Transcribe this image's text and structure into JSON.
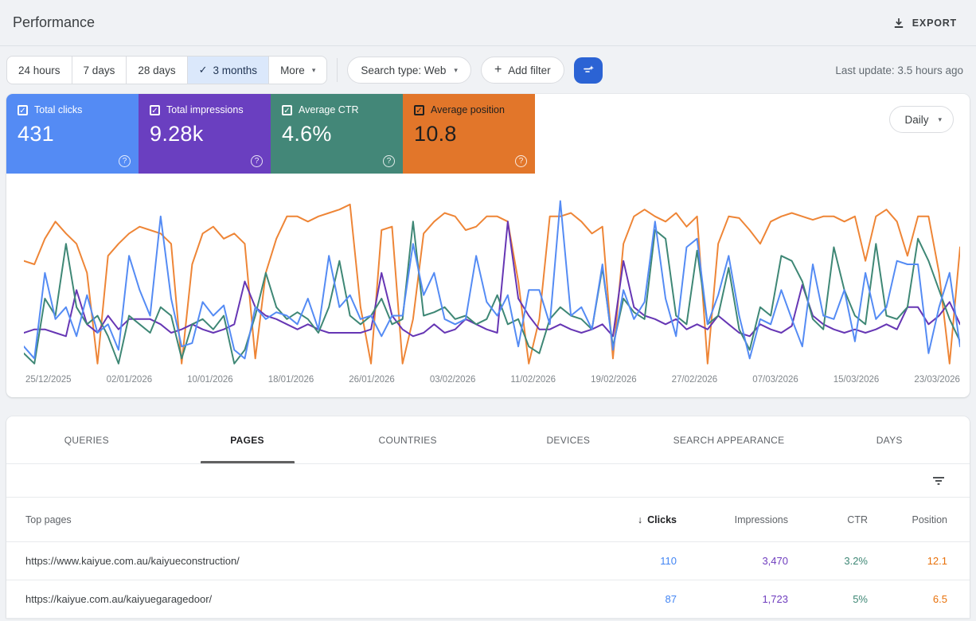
{
  "header": {
    "title": "Performance",
    "export_label": "EXPORT"
  },
  "toolbar": {
    "date_ranges": [
      "24 hours",
      "7 days",
      "28 days",
      "3 months",
      "More"
    ],
    "selected_range": "3 months",
    "search_type_label": "Search type: Web",
    "add_filter_label": "Add filter",
    "last_update": "Last update: 3.5 hours ago"
  },
  "metrics": {
    "granularity": "Daily",
    "cards": [
      {
        "label": "Total clicks",
        "value": "431",
        "color": "#548bf4",
        "checked": true,
        "dark_text": false
      },
      {
        "label": "Total impressions",
        "value": "9.28k",
        "color": "#6a3fc0",
        "checked": true,
        "dark_text": false
      },
      {
        "label": "Average CTR",
        "value": "4.6%",
        "color": "#438778",
        "checked": true,
        "dark_text": false
      },
      {
        "label": "Average position",
        "value": "10.8",
        "color": "#e2762a",
        "checked": true,
        "dark_text": true
      }
    ]
  },
  "chart_data": {
    "type": "line",
    "x_tick_labels": [
      "25/12/2025",
      "02/01/2026",
      "10/01/2026",
      "18/01/2026",
      "26/01/2026",
      "03/02/2026",
      "11/02/2026",
      "19/02/2026",
      "27/02/2026",
      "07/03/2026",
      "15/03/2026",
      "23/03/2026"
    ],
    "ylim": [
      0,
      100
    ],
    "grid": false,
    "legend": "metric cards above act as legend",
    "series": [
      {
        "name": "Clicks",
        "color": "#548bf4",
        "values": [
          12,
          5,
          55,
          28,
          35,
          18,
          42,
          20,
          25,
          10,
          65,
          45,
          30,
          88,
          40,
          12,
          14,
          38,
          30,
          36,
          10,
          5,
          35,
          28,
          32,
          30,
          25,
          40,
          22,
          65,
          35,
          42,
          28,
          30,
          18,
          30,
          30,
          72,
          42,
          55,
          28,
          25,
          28,
          65,
          38,
          30,
          42,
          12,
          45,
          45,
          25,
          97,
          30,
          35,
          22,
          60,
          10,
          45,
          28,
          38,
          85,
          40,
          18,
          70,
          75,
          25,
          42,
          65,
          30,
          5,
          28,
          25,
          45,
          28,
          12,
          60,
          30,
          28,
          45,
          15,
          55,
          28,
          35,
          62,
          60,
          60,
          8,
          35,
          55,
          12
        ]
      },
      {
        "name": "Impressions",
        "color": "#6636b4",
        "values": [
          20,
          22,
          22,
          20,
          18,
          45,
          25,
          20,
          30,
          22,
          28,
          28,
          28,
          25,
          20,
          22,
          25,
          22,
          20,
          22,
          25,
          50,
          35,
          30,
          28,
          25,
          22,
          25,
          22,
          20,
          20,
          20,
          20,
          22,
          55,
          30,
          22,
          18,
          20,
          25,
          20,
          22,
          28,
          25,
          22,
          20,
          85,
          40,
          30,
          22,
          22,
          25,
          22,
          20,
          22,
          25,
          18,
          62,
          35,
          30,
          28,
          25,
          28,
          22,
          25,
          22,
          30,
          25,
          20,
          18,
          25,
          22,
          20,
          24,
          48,
          30,
          25,
          22,
          20,
          22,
          20,
          22,
          25,
          22,
          35,
          35,
          25,
          30,
          38,
          25
        ]
      },
      {
        "name": "CTR",
        "color": "#3e8775",
        "values": [
          8,
          2,
          40,
          30,
          72,
          35,
          25,
          30,
          18,
          2,
          30,
          25,
          20,
          35,
          30,
          5,
          25,
          28,
          22,
          30,
          2,
          10,
          30,
          55,
          35,
          28,
          32,
          28,
          20,
          35,
          62,
          30,
          25,
          30,
          40,
          25,
          28,
          85,
          30,
          32,
          35,
          28,
          30,
          25,
          28,
          42,
          25,
          28,
          12,
          8,
          28,
          35,
          30,
          28,
          22,
          58,
          12,
          40,
          32,
          28,
          80,
          75,
          30,
          25,
          68,
          25,
          30,
          58,
          22,
          10,
          35,
          30,
          65,
          62,
          50,
          28,
          22,
          70,
          45,
          30,
          25,
          72,
          30,
          28,
          35,
          75,
          62,
          45,
          28,
          15
        ]
      },
      {
        "name": "Position",
        "color": "#ee8536",
        "values": [
          62,
          60,
          75,
          85,
          78,
          72,
          55,
          2,
          65,
          72,
          78,
          82,
          80,
          78,
          72,
          2,
          60,
          78,
          82,
          75,
          78,
          72,
          5,
          55,
          75,
          88,
          88,
          85,
          88,
          90,
          92,
          95,
          35,
          2,
          80,
          82,
          2,
          28,
          78,
          85,
          90,
          88,
          80,
          82,
          88,
          88,
          85,
          50,
          2,
          28,
          88,
          88,
          90,
          85,
          78,
          82,
          5,
          72,
          88,
          92,
          88,
          85,
          90,
          82,
          88,
          2,
          72,
          88,
          87,
          80,
          72,
          85,
          88,
          90,
          88,
          86,
          88,
          88,
          85,
          88,
          62,
          88,
          92,
          85,
          65,
          88,
          88,
          55,
          2,
          70
        ]
      }
    ]
  },
  "tabs": [
    "QUERIES",
    "PAGES",
    "COUNTRIES",
    "DEVICES",
    "SEARCH APPEARANCE",
    "DAYS"
  ],
  "active_tab": "PAGES",
  "table": {
    "row_header": "Top pages",
    "columns": [
      "Clicks",
      "Impressions",
      "CTR",
      "Position"
    ],
    "sort_column": "Clicks",
    "value_colors": {
      "clicks": "#4285f4",
      "impressions": "#6e3cbe",
      "ctr": "#3e8775",
      "position": "#e8710a"
    },
    "rows": [
      {
        "page": "https://www.kaiyue.com.au/kaiyueconstruction/",
        "clicks": "110",
        "impressions": "3,470",
        "ctr": "3.2%",
        "position": "12.1"
      },
      {
        "page": "https://kaiyue.com.au/kaiyuegaragedoor/",
        "clicks": "87",
        "impressions": "1,723",
        "ctr": "5%",
        "position": "6.5"
      }
    ]
  }
}
